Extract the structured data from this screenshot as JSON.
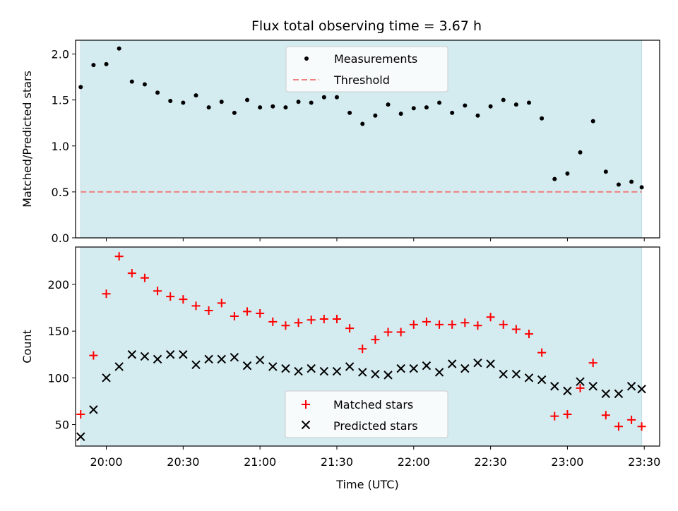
{
  "title": "Flux total observing time = 3.67 h",
  "colors": {
    "span": "#d4ebf0",
    "measurements": "#000000",
    "threshold": "#f08080",
    "matched": "#ff0000",
    "predicted": "#000000"
  },
  "chart_data": [
    {
      "type": "scatter",
      "ylabel": "Matched/Predicted stars",
      "xlim": [
        "19:48",
        "23:36"
      ],
      "ylim": [
        0.0,
        2.15
      ],
      "yticks": [
        0.0,
        0.5,
        1.0,
        1.5,
        2.0
      ],
      "ytick_labels": [
        "0.0",
        "0.5",
        "1.0",
        "1.5",
        "2.0"
      ],
      "legend": {
        "placement": "top-center",
        "entries": [
          "Measurements",
          "Threshold"
        ]
      },
      "threshold": {
        "name": "Threshold",
        "value": 0.5,
        "x": [
          "19:50",
          "23:29"
        ]
      },
      "shaded_span": [
        "19:50",
        "23:29"
      ],
      "series": [
        {
          "name": "Measurements",
          "x": [
            "19:50",
            "19:55",
            "20:00",
            "20:05",
            "20:10",
            "20:15",
            "20:20",
            "20:25",
            "20:30",
            "20:35",
            "20:40",
            "20:45",
            "20:50",
            "20:55",
            "21:00",
            "21:05",
            "21:10",
            "21:15",
            "21:20",
            "21:25",
            "21:30",
            "21:35",
            "21:40",
            "21:45",
            "21:50",
            "21:55",
            "22:00",
            "22:05",
            "22:10",
            "22:15",
            "22:20",
            "22:25",
            "22:30",
            "22:35",
            "22:40",
            "22:45",
            "22:50",
            "22:55",
            "23:00",
            "23:05",
            "23:10",
            "23:15",
            "23:20",
            "23:25",
            "23:29"
          ],
          "values": [
            1.64,
            1.88,
            1.89,
            2.06,
            1.7,
            1.67,
            1.58,
            1.49,
            1.47,
            1.55,
            1.42,
            1.48,
            1.36,
            1.5,
            1.42,
            1.43,
            1.42,
            1.48,
            1.47,
            1.53,
            1.53,
            1.36,
            1.24,
            1.33,
            1.45,
            1.35,
            1.41,
            1.42,
            1.47,
            1.36,
            1.44,
            1.33,
            1.43,
            1.5,
            1.45,
            1.47,
            1.3,
            0.64,
            0.7,
            0.93,
            1.27,
            0.72,
            0.58,
            0.61,
            0.55
          ]
        }
      ]
    },
    {
      "type": "scatter",
      "xlabel": "Time (UTC)",
      "ylabel": "Count",
      "xlim": [
        "19:48",
        "23:36"
      ],
      "ylim": [
        27,
        240
      ],
      "yticks": [
        50,
        100,
        150,
        200
      ],
      "ytick_labels": [
        "50",
        "100",
        "150",
        "200"
      ],
      "xticks": [
        "20:00",
        "20:30",
        "21:00",
        "21:30",
        "22:00",
        "22:30",
        "23:00",
        "23:30"
      ],
      "legend": {
        "placement": "lower-center",
        "entries": [
          "Matched stars",
          "Predicted stars"
        ]
      },
      "shaded_span": [
        "19:50",
        "23:29"
      ],
      "x": [
        "19:50",
        "19:55",
        "20:00",
        "20:05",
        "20:10",
        "20:15",
        "20:20",
        "20:25",
        "20:30",
        "20:35",
        "20:40",
        "20:45",
        "20:50",
        "20:55",
        "21:00",
        "21:05",
        "21:10",
        "21:15",
        "21:20",
        "21:25",
        "21:30",
        "21:35",
        "21:40",
        "21:45",
        "21:50",
        "21:55",
        "22:00",
        "22:05",
        "22:10",
        "22:15",
        "22:20",
        "22:25",
        "22:30",
        "22:35",
        "22:40",
        "22:45",
        "22:50",
        "22:55",
        "23:00",
        "23:05",
        "23:10",
        "23:15",
        "23:20",
        "23:25",
        "23:29"
      ],
      "series": [
        {
          "name": "Matched stars",
          "marker": "plus",
          "values": [
            61,
            124,
            190,
            230,
            212,
            207,
            193,
            187,
            184,
            177,
            172,
            180,
            166,
            171,
            169,
            160,
            156,
            159,
            162,
            163,
            163,
            153,
            131,
            141,
            149,
            149,
            157,
            160,
            157,
            157,
            159,
            156,
            165,
            157,
            152,
            147,
            127,
            59,
            61,
            89,
            116,
            60,
            48,
            55,
            48
          ]
        },
        {
          "name": "Predicted stars",
          "marker": "x",
          "values": [
            37,
            66,
            100,
            112,
            125,
            123,
            120,
            125,
            125,
            114,
            120,
            120,
            122,
            113,
            119,
            112,
            110,
            107,
            110,
            107,
            107,
            112,
            106,
            104,
            103,
            110,
            110,
            113,
            106,
            115,
            110,
            116,
            115,
            104,
            104,
            100,
            98,
            91,
            86,
            96,
            91,
            83,
            83,
            91,
            88
          ]
        }
      ]
    }
  ]
}
